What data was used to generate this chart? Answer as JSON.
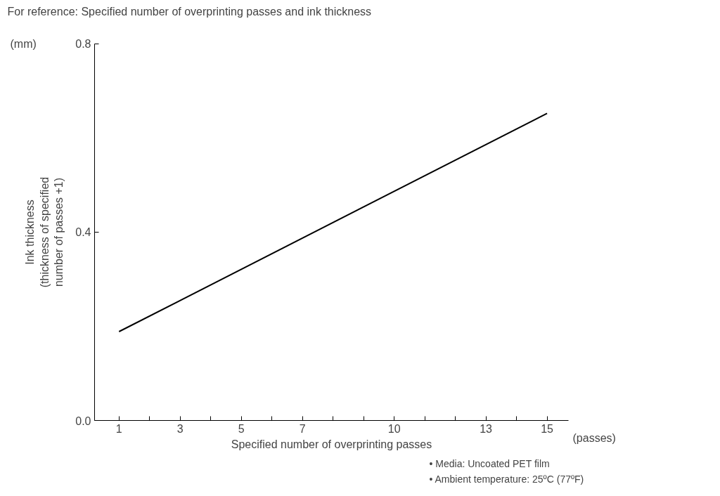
{
  "chart_data": {
    "type": "line",
    "title": "For reference: Specified number of overprinting passes and ink thickness",
    "xlabel": "Specified number of overprinting passes",
    "ylabel": "Ink thickness\n(thickness of specified\nnumber of passes +1)",
    "x": [
      1,
      15
    ],
    "series": [
      {
        "color": "#000000",
        "values": [
          0.189,
          0.652
        ]
      }
    ],
    "xlim": [
      0.2,
      15.7
    ],
    "ylim": [
      0,
      0.8
    ],
    "xticks": [
      1,
      {
        "value": 2,
        "label": null
      },
      3,
      {
        "value": 4,
        "label": null
      },
      5,
      {
        "value": 6,
        "label": null
      },
      7,
      {
        "value": 8,
        "label": null
      },
      {
        "value": 9,
        "label": null
      },
      10,
      {
        "value": 11,
        "label": null
      },
      {
        "value": 12,
        "label": null
      },
      13,
      {
        "value": 14,
        "label": null
      },
      15
    ],
    "yticks": [
      {
        "value": 0,
        "label": "0.0"
      },
      {
        "value": 0.4,
        "label": "0.4"
      },
      {
        "value": 0.8,
        "label": "0.8"
      }
    ],
    "marker": "none",
    "line_style": "solid",
    "annotations": [
      "(mm)",
      "(passes)",
      "• Media: Uncoated PET film",
      "• Ambient temperature: 25ºC (77ºF)"
    ]
  }
}
